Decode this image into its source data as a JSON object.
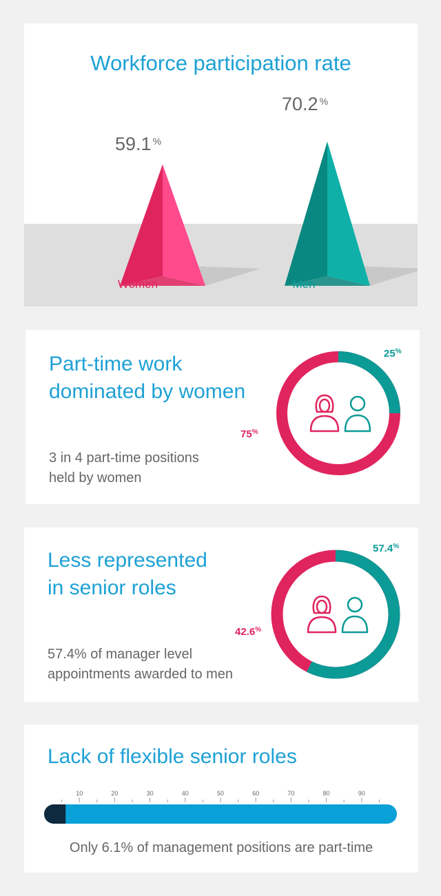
{
  "colors": {
    "women": "#e0245e",
    "men": "#0b9a96",
    "title": "#1ea1d5",
    "bar": "#0aa0d8",
    "bar_dark": "#0e2a3e"
  },
  "section1": {
    "title": "Workforce participation rate",
    "women_value": "59.1",
    "men_value": "70.2",
    "pct": "%",
    "women_label": "Women",
    "men_label": "Men"
  },
  "section2": {
    "title_line1": "Part-time work",
    "title_line2": "dominated by women",
    "desc_line1": "3 in 4 part-time positions",
    "desc_line2": "held by women",
    "men_value": "25",
    "women_value": "75",
    "pct": "%"
  },
  "section3": {
    "title_line1": "Less represented",
    "title_line2": "in senior roles",
    "desc_line1": "57.4% of manager level",
    "desc_line2": "appointments awarded to men",
    "men_value": "57.4",
    "women_value": "42.6",
    "pct": "%"
  },
  "section4": {
    "title": "Lack of flexible senior roles",
    "caption": "Only 6.1% of management positions are part-time"
  },
  "chart_data": [
    {
      "type": "bar",
      "title": "Workforce participation rate",
      "categories": [
        "Women",
        "Men"
      ],
      "values": [
        59.1,
        70.2
      ],
      "unit": "%"
    },
    {
      "type": "pie",
      "title": "Part-time work dominated by women",
      "labels": [
        "Women",
        "Men"
      ],
      "values": [
        75,
        25
      ],
      "unit": "%"
    },
    {
      "type": "pie",
      "title": "Less represented in senior roles",
      "labels": [
        "Women",
        "Men"
      ],
      "values": [
        42.6,
        57.4
      ],
      "unit": "%"
    },
    {
      "type": "bar",
      "title": "Lack of flexible senior roles",
      "orientation": "horizontal",
      "value": 6.1,
      "xlim": [
        0,
        100
      ],
      "ticks": [
        10,
        20,
        30,
        40,
        50,
        60,
        70,
        80,
        90
      ],
      "unit": "%"
    }
  ]
}
